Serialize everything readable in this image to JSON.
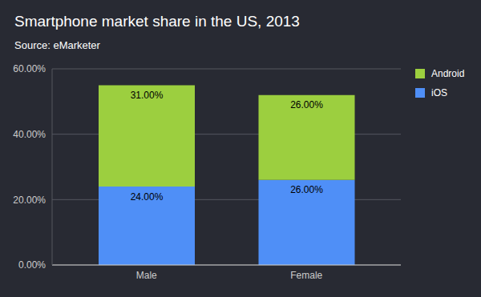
{
  "chart_data": {
    "type": "bar",
    "title": "Smartphone market share in the US, 2013",
    "subtitle": "Source: eMarketer",
    "categories": [
      "Male",
      "Female"
    ],
    "series": [
      {
        "name": "iOS",
        "color": "#4f8ff7",
        "values": [
          24,
          26
        ],
        "value_labels": [
          "24.00%",
          "26.00%"
        ]
      },
      {
        "name": "Android",
        "color": "#9ccf3f",
        "values": [
          31,
          26
        ],
        "value_labels": [
          "31.00%",
          "26.00%"
        ]
      }
    ],
    "ylim": [
      0,
      60
    ],
    "yticks": [
      {
        "value": 0,
        "label": "0.00%"
      },
      {
        "value": 20,
        "label": "20.00%"
      },
      {
        "value": 40,
        "label": "40.00%"
      },
      {
        "value": 60,
        "label": "60.00%"
      }
    ],
    "stacked": true,
    "grid": true,
    "data_labels": true,
    "legend": "right"
  }
}
